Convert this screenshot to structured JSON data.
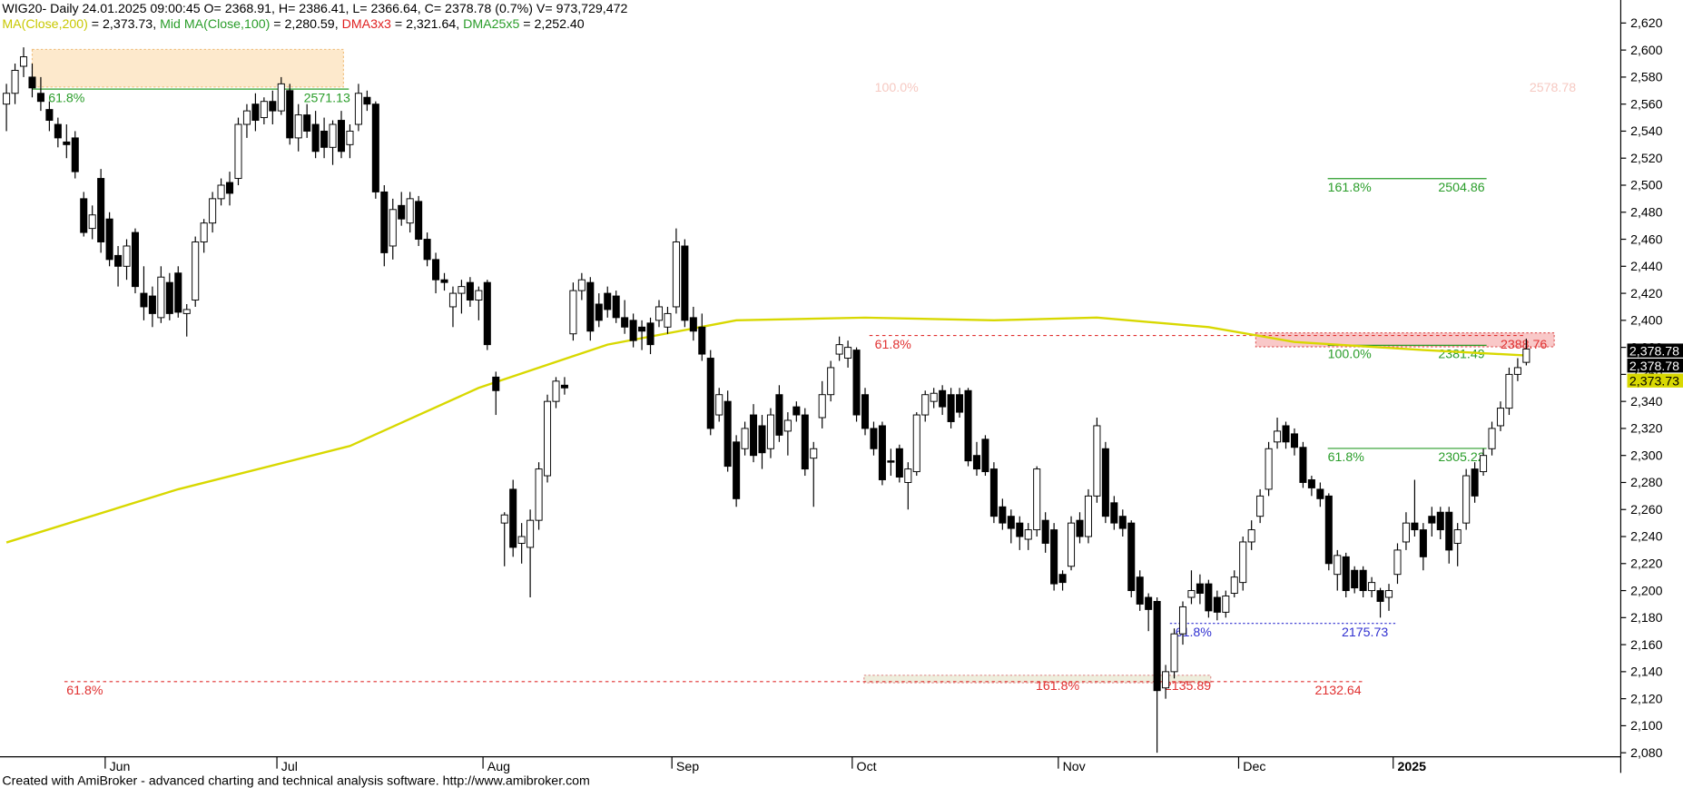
{
  "chart_data": {
    "type": "candlestick",
    "title": "WIG20- Daily 24.01.2025 09:00:45 O= 2368.91, H= 2386.41, L= 2366.64, C= 2378.78 (0.7%) V= 973,729,472",
    "legend": [
      {
        "name": "MA(Close,200)",
        "color": "#c8c800",
        "text": " = 2,373.73, "
      },
      {
        "name": "Mid MA(Close,100)",
        "color": "#2a9d2a",
        "text": " = 2,280.59, "
      },
      {
        "name": "DMA3x3",
        "color": "#e02020",
        "text": " = 2,321.64, "
      },
      {
        "name": "DMA25x5",
        "color": "#2a9d2a",
        "text": " = 2,252.40"
      }
    ],
    "footer": "Created with AmiBroker - advanced charting and technical analysis software. http://www.amibroker.com",
    "ylim": [
      2077,
      2637
    ],
    "yticks": [
      {
        "value": 2080,
        "label": "2,080"
      },
      {
        "value": 2100,
        "label": "2,100"
      },
      {
        "value": 2120,
        "label": "2,120"
      },
      {
        "value": 2140,
        "label": "2,140"
      },
      {
        "value": 2160,
        "label": "2,160"
      },
      {
        "value": 2180,
        "label": "2,180"
      },
      {
        "value": 2200,
        "label": "2,200"
      },
      {
        "value": 2220,
        "label": "2,220"
      },
      {
        "value": 2240,
        "label": "2,240"
      },
      {
        "value": 2260,
        "label": "2,260"
      },
      {
        "value": 2280,
        "label": "2,280"
      },
      {
        "value": 2300,
        "label": "2,300"
      },
      {
        "value": 2320,
        "label": "2,320"
      },
      {
        "value": 2340,
        "label": "2,340"
      },
      {
        "value": 2360,
        "label": "2,360"
      },
      {
        "value": 2380,
        "label": "2,380"
      },
      {
        "value": 2400,
        "label": "2,400"
      },
      {
        "value": 2420,
        "label": "2,420"
      },
      {
        "value": 2440,
        "label": "2,440"
      },
      {
        "value": 2460,
        "label": "2,460"
      },
      {
        "value": 2480,
        "label": "2,480"
      },
      {
        "value": 2500,
        "label": "2,500"
      },
      {
        "value": 2520,
        "label": "2,520"
      },
      {
        "value": 2540,
        "label": "2,540"
      },
      {
        "value": 2560,
        "label": "2,560"
      },
      {
        "value": 2580,
        "label": "2,580"
      },
      {
        "value": 2600,
        "label": "2,600"
      },
      {
        "value": 2620,
        "label": "2,620"
      }
    ],
    "categories": [
      null,
      null,
      null,
      null,
      null,
      null,
      null,
      null,
      null,
      null,
      null,
      null,
      "Jun",
      null,
      null,
      null,
      null,
      null,
      null,
      null,
      null,
      null,
      null,
      null,
      null,
      null,
      null,
      null,
      null,
      null,
      null,
      null,
      "Jul",
      null,
      null,
      null,
      null,
      null,
      null,
      null,
      null,
      null,
      null,
      null,
      null,
      null,
      null,
      null,
      null,
      null,
      null,
      null,
      null,
      null,
      null,
      null,
      "Aug",
      null,
      null,
      null,
      null,
      null,
      null,
      null,
      null,
      null,
      null,
      null,
      null,
      null,
      null,
      null,
      null,
      null,
      null,
      null,
      null,
      null,
      "Sep",
      null,
      null,
      null,
      null,
      null,
      null,
      null,
      null,
      null,
      null,
      null,
      null,
      null,
      null,
      null,
      null,
      null,
      null,
      null,
      null,
      "Oct",
      null,
      null,
      null,
      null,
      null,
      null,
      null,
      null,
      null,
      null,
      null,
      null,
      null,
      null,
      null,
      null,
      null,
      null,
      null,
      null,
      null,
      null,
      null,
      "Nov",
      null,
      null,
      null,
      null,
      null,
      null,
      null,
      null,
      null,
      null,
      null,
      null,
      null,
      null,
      null,
      null,
      null,
      null,
      null,
      null,
      "Dec",
      null,
      null,
      null,
      null,
      null,
      null,
      null,
      null,
      null,
      null,
      null,
      null,
      null,
      null,
      null,
      null,
      null,
      "2025",
      null,
      null,
      null,
      null,
      null,
      null,
      null,
      null,
      null,
      null,
      null,
      null,
      null,
      null,
      null
    ],
    "ohlc": [
      [
        2560,
        2575,
        2540,
        2568
      ],
      [
        2568,
        2590,
        2560,
        2585
      ],
      [
        2588,
        2602,
        2580,
        2595
      ],
      [
        2580,
        2590,
        2565,
        2572
      ],
      [
        2568,
        2580,
        2555,
        2562
      ],
      [
        2556,
        2562,
        2540,
        2548
      ],
      [
        2545,
        2550,
        2528,
        2535
      ],
      [
        2532,
        2545,
        2520,
        2530
      ],
      [
        2535,
        2540,
        2505,
        2510
      ],
      [
        2490,
        2495,
        2462,
        2465
      ],
      [
        2468,
        2485,
        2460,
        2478
      ],
      [
        2505,
        2512,
        2450,
        2458
      ],
      [
        2475,
        2480,
        2440,
        2445
      ],
      [
        2448,
        2455,
        2425,
        2440
      ],
      [
        2440,
        2460,
        2430,
        2455
      ],
      [
        2465,
        2468,
        2420,
        2425
      ],
      [
        2420,
        2440,
        2400,
        2410
      ],
      [
        2418,
        2425,
        2395,
        2405
      ],
      [
        2402,
        2440,
        2398,
        2432
      ],
      [
        2428,
        2435,
        2400,
        2405
      ],
      [
        2435,
        2440,
        2402,
        2406
      ],
      [
        2405,
        2412,
        2388,
        2408
      ],
      [
        2415,
        2462,
        2410,
        2458
      ],
      [
        2458,
        2475,
        2450,
        2472
      ],
      [
        2472,
        2495,
        2465,
        2490
      ],
      [
        2490,
        2505,
        2485,
        2500
      ],
      [
        2502,
        2510,
        2485,
        2494
      ],
      [
        2505,
        2550,
        2500,
        2545
      ],
      [
        2545,
        2560,
        2535,
        2555
      ],
      [
        2560,
        2568,
        2540,
        2548
      ],
      [
        2550,
        2565,
        2545,
        2562
      ],
      [
        2562,
        2570,
        2545,
        2555
      ],
      [
        2555,
        2580,
        2552,
        2575
      ],
      [
        2570,
        2575,
        2530,
        2535
      ],
      [
        2535,
        2560,
        2525,
        2552
      ],
      [
        2552,
        2560,
        2535,
        2540
      ],
      [
        2545,
        2555,
        2520,
        2525
      ],
      [
        2540,
        2550,
        2520,
        2528
      ],
      [
        2528,
        2548,
        2515,
        2545
      ],
      [
        2548,
        2555,
        2520,
        2525
      ],
      [
        2530,
        2545,
        2520,
        2540
      ],
      [
        2545,
        2575,
        2540,
        2568
      ],
      [
        2565,
        2570,
        2555,
        2560
      ],
      [
        2560,
        2562,
        2490,
        2495
      ],
      [
        2495,
        2500,
        2440,
        2450
      ],
      [
        2455,
        2490,
        2445,
        2482
      ],
      [
        2485,
        2495,
        2470,
        2475
      ],
      [
        2472,
        2495,
        2465,
        2490
      ],
      [
        2488,
        2492,
        2455,
        2460
      ],
      [
        2460,
        2465,
        2440,
        2445
      ],
      [
        2445,
        2450,
        2420,
        2430
      ],
      [
        2430,
        2435,
        2422,
        2428
      ],
      [
        2410,
        2425,
        2395,
        2420
      ],
      [
        2420,
        2430,
        2405,
        2425
      ],
      [
        2428,
        2432,
        2410,
        2415
      ],
      [
        2415,
        2425,
        2400,
        2422
      ],
      [
        2428,
        2430,
        2378,
        2382
      ],
      [
        2358,
        2362,
        2330,
        2348
      ],
      [
        2250,
        2258,
        2218,
        2256
      ],
      [
        2275,
        2282,
        2225,
        2232
      ],
      [
        2235,
        2250,
        2220,
        2240
      ],
      [
        2232,
        2260,
        2195,
        2252
      ],
      [
        2252,
        2295,
        2245,
        2290
      ],
      [
        2285,
        2345,
        2280,
        2340
      ],
      [
        2340,
        2358,
        2335,
        2355
      ],
      [
        2352,
        2358,
        2345,
        2350
      ],
      [
        2390,
        2428,
        2385,
        2422
      ],
      [
        2422,
        2435,
        2415,
        2430
      ],
      [
        2428,
        2432,
        2385,
        2392
      ],
      [
        2412,
        2420,
        2395,
        2400
      ],
      [
        2420,
        2425,
        2402,
        2408
      ],
      [
        2418,
        2422,
        2398,
        2402
      ],
      [
        2402,
        2415,
        2390,
        2395
      ],
      [
        2400,
        2405,
        2380,
        2385
      ],
      [
        2395,
        2400,
        2378,
        2392
      ],
      [
        2398,
        2402,
        2375,
        2382
      ],
      [
        2400,
        2415,
        2395,
        2410
      ],
      [
        2395,
        2410,
        2390,
        2405
      ],
      [
        2410,
        2468,
        2405,
        2458
      ],
      [
        2455,
        2460,
        2395,
        2400
      ],
      [
        2402,
        2410,
        2385,
        2392
      ],
      [
        2395,
        2405,
        2370,
        2375
      ],
      [
        2372,
        2378,
        2315,
        2320
      ],
      [
        2330,
        2350,
        2325,
        2345
      ],
      [
        2340,
        2348,
        2288,
        2292
      ],
      [
        2310,
        2315,
        2262,
        2268
      ],
      [
        2305,
        2325,
        2300,
        2320
      ],
      [
        2330,
        2338,
        2295,
        2300
      ],
      [
        2322,
        2330,
        2290,
        2302
      ],
      [
        2305,
        2335,
        2298,
        2330
      ],
      [
        2345,
        2352,
        2310,
        2315
      ],
      [
        2318,
        2332,
        2300,
        2326
      ],
      [
        2336,
        2340,
        2325,
        2330
      ],
      [
        2330,
        2335,
        2285,
        2290
      ],
      [
        2298,
        2310,
        2262,
        2305
      ],
      [
        2328,
        2355,
        2320,
        2345
      ],
      [
        2345,
        2370,
        2340,
        2365
      ],
      [
        2375,
        2388,
        2370,
        2382
      ],
      [
        2372,
        2385,
        2365,
        2380
      ],
      [
        2378,
        2380,
        2325,
        2330
      ],
      [
        2345,
        2350,
        2315,
        2320
      ],
      [
        2320,
        2325,
        2300,
        2305
      ],
      [
        2322,
        2325,
        2278,
        2282
      ],
      [
        2296,
        2305,
        2285,
        2295
      ],
      [
        2305,
        2308,
        2280,
        2284
      ],
      [
        2280,
        2295,
        2260,
        2290
      ],
      [
        2288,
        2332,
        2285,
        2330
      ],
      [
        2330,
        2348,
        2325,
        2345
      ],
      [
        2340,
        2350,
        2335,
        2346
      ],
      [
        2348,
        2352,
        2330,
        2336
      ],
      [
        2345,
        2350,
        2320,
        2325
      ],
      [
        2345,
        2350,
        2328,
        2332
      ],
      [
        2348,
        2350,
        2292,
        2296
      ],
      [
        2300,
        2310,
        2285,
        2290
      ],
      [
        2312,
        2315,
        2285,
        2288
      ],
      [
        2290,
        2295,
        2250,
        2255
      ],
      [
        2262,
        2268,
        2245,
        2250
      ],
      [
        2255,
        2260,
        2235,
        2246
      ],
      [
        2250,
        2255,
        2230,
        2240
      ],
      [
        2238,
        2250,
        2230,
        2245
      ],
      [
        2245,
        2292,
        2240,
        2290
      ],
      [
        2252,
        2258,
        2228,
        2235
      ],
      [
        2245,
        2250,
        2200,
        2205
      ],
      [
        2212,
        2215,
        2200,
        2206
      ],
      [
        2218,
        2255,
        2215,
        2250
      ],
      [
        2252,
        2258,
        2235,
        2240
      ],
      [
        2240,
        2275,
        2235,
        2270
      ],
      [
        2270,
        2328,
        2265,
        2322
      ],
      [
        2305,
        2310,
        2250,
        2255
      ],
      [
        2265,
        2270,
        2245,
        2250
      ],
      [
        2255,
        2260,
        2240,
        2246
      ],
      [
        2250,
        2252,
        2195,
        2200
      ],
      [
        2210,
        2215,
        2185,
        2190
      ],
      [
        2195,
        2198,
        2170,
        2186
      ],
      [
        2192,
        2195,
        2080,
        2126
      ],
      [
        2128,
        2145,
        2120,
        2140
      ],
      [
        2140,
        2172,
        2135,
        2168
      ],
      [
        2168,
        2192,
        2160,
        2188
      ],
      [
        2195,
        2215,
        2190,
        2200
      ],
      [
        2205,
        2212,
        2190,
        2198
      ],
      [
        2205,
        2208,
        2180,
        2185
      ],
      [
        2195,
        2200,
        2178,
        2184
      ],
      [
        2184,
        2200,
        2180,
        2196
      ],
      [
        2198,
        2215,
        2195,
        2210
      ],
      [
        2206,
        2240,
        2200,
        2236
      ],
      [
        2236,
        2252,
        2230,
        2245
      ],
      [
        2255,
        2275,
        2250,
        2270
      ],
      [
        2275,
        2310,
        2270,
        2305
      ],
      [
        2310,
        2328,
        2305,
        2318
      ],
      [
        2322,
        2325,
        2305,
        2310
      ],
      [
        2316,
        2320,
        2300,
        2306
      ],
      [
        2306,
        2310,
        2276,
        2280
      ],
      [
        2282,
        2285,
        2270,
        2276
      ],
      [
        2275,
        2280,
        2262,
        2268
      ],
      [
        2270,
        2272,
        2215,
        2220
      ],
      [
        2212,
        2230,
        2200,
        2226
      ],
      [
        2225,
        2228,
        2195,
        2200
      ],
      [
        2215,
        2218,
        2198,
        2202
      ],
      [
        2215,
        2218,
        2195,
        2200
      ],
      [
        2200,
        2210,
        2195,
        2206
      ],
      [
        2200,
        2202,
        2180,
        2192
      ],
      [
        2195,
        2205,
        2185,
        2200
      ],
      [
        2212,
        2235,
        2205,
        2230
      ],
      [
        2236,
        2258,
        2230,
        2250
      ],
      [
        2250,
        2282,
        2240,
        2245
      ],
      [
        2245,
        2250,
        2215,
        2225
      ],
      [
        2255,
        2262,
        2240,
        2250
      ],
      [
        2258,
        2262,
        2238,
        2245
      ],
      [
        2258,
        2262,
        2220,
        2230
      ],
      [
        2235,
        2250,
        2218,
        2245
      ],
      [
        2250,
        2290,
        2245,
        2285
      ],
      [
        2290,
        2295,
        2265,
        2270
      ],
      [
        2288,
        2305,
        2285,
        2300
      ],
      [
        2305,
        2325,
        2300,
        2320
      ],
      [
        2322,
        2340,
        2318,
        2335
      ],
      [
        2335,
        2365,
        2330,
        2360
      ],
      [
        2360,
        2372,
        2355,
        2365
      ],
      [
        2368.91,
        2386.41,
        2366.64,
        2378.78
      ]
    ],
    "ma": {
      "color": "#d8d800",
      "x": [
        0,
        20,
        40,
        55,
        70,
        85,
        100,
        115,
        127,
        140,
        150,
        165,
        177
      ],
      "values": [
        2235.6,
        2275,
        2307,
        2350,
        2382,
        2400,
        2402,
        2400,
        2402,
        2395,
        2384,
        2378,
        2374
      ]
    },
    "fib_levels": [
      {
        "value": 2571.13,
        "label": "61.8%",
        "color": "#2a9d2a",
        "line": "solid"
      },
      {
        "value": 2578.78,
        "label": "100.0%",
        "color": "#f6c9c2",
        "line": "none"
      },
      {
        "value": 2504.86,
        "label": "161.8%",
        "color": "#2a9d2a",
        "line": "solid"
      },
      {
        "value": 2388.76,
        "label": "61.8%",
        "color": "#e03030",
        "line": "dashed"
      },
      {
        "value": 2381.49,
        "label": "100.0%",
        "color": "#2a9d2a",
        "line": "solid"
      },
      {
        "value": 2305.22,
        "label": "61.8%",
        "color": "#2a9d2a",
        "line": "solid"
      },
      {
        "value": 2175.73,
        "label": "61.8%",
        "color": "#3030d0",
        "line": "dotted"
      },
      {
        "value": 2132.64,
        "label": "61.8%",
        "color": "#e03030",
        "line": "dashed"
      },
      {
        "value": 2135.89,
        "label": "161.8%",
        "color": "#e03030",
        "line": "none"
      }
    ],
    "price_tags": [
      {
        "value": 2378.78,
        "label": "2,378.78",
        "color": "#000000"
      },
      {
        "value": 2378.78,
        "label": "2,378.78",
        "color": "#000000"
      },
      {
        "value": 2373.73,
        "label": "2,373.73",
        "color": "#d8d800"
      }
    ]
  }
}
